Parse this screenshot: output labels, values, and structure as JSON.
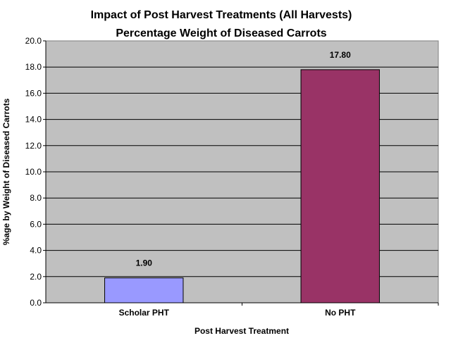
{
  "chart_data": {
    "type": "bar",
    "title_line1": "Impact of Post Harvest Treatments (All Harvests)",
    "title_line2": "Percentage Weight of Diseased Carrots",
    "xlabel": "Post Harvest Treatment",
    "ylabel": "%age by Weight of Diseased Carrots",
    "categories": [
      "Scholar PHT",
      "No PHT"
    ],
    "values": [
      1.9,
      17.8
    ],
    "data_labels": [
      "1.90",
      "17.80"
    ],
    "ylim": [
      0,
      20
    ],
    "yticks": [
      "0.0",
      "2.0",
      "4.0",
      "6.0",
      "8.0",
      "10.0",
      "12.0",
      "14.0",
      "16.0",
      "18.0",
      "20.0"
    ],
    "grid": true,
    "legend": "none",
    "colors": {
      "plot_background": "#c0c0c0",
      "bars": [
        "#9999ff",
        "#993366"
      ],
      "bar_outline": "#000000"
    }
  }
}
